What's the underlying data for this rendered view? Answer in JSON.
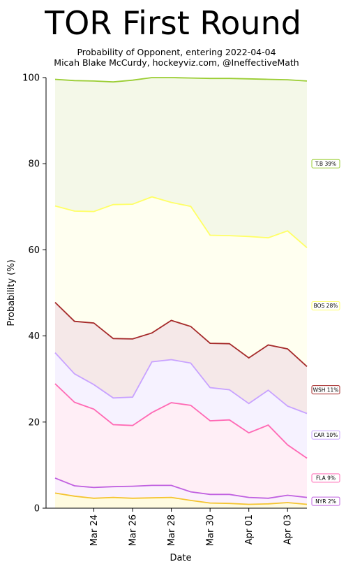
{
  "chart_data": {
    "type": "area",
    "title": "TOR First Round",
    "subtitle_lines": [
      "Probability of Opponent, entering 2022-04-04",
      "Micah Blake McCurdy, hockeyviz.com, @IneffectiveMath"
    ],
    "xlabel": "Date",
    "ylabel": "Probability (%)",
    "ylim": [
      0,
      100
    ],
    "yticks": [
      0,
      20,
      40,
      60,
      80,
      100
    ],
    "x": [
      "2022-03-22",
      "2022-03-23",
      "2022-03-24",
      "2022-03-25",
      "2022-03-26",
      "2022-03-27",
      "2022-03-28",
      "2022-03-29",
      "2022-03-30",
      "2022-03-31",
      "2022-04-01",
      "2022-04-02",
      "2022-04-03",
      "2022-04-04"
    ],
    "xtick_labels": [
      {
        "date": "2022-03-24",
        "label": "Mar 24"
      },
      {
        "date": "2022-03-26",
        "label": "Mar 26"
      },
      {
        "date": "2022-03-28",
        "label": "Mar 28"
      },
      {
        "date": "2022-03-30",
        "label": "Mar 30"
      },
      {
        "date": "2022-04-01",
        "label": "Apr 01"
      },
      {
        "date": "2022-04-03",
        "label": "Apr 03"
      }
    ],
    "stacked_cumulative": true,
    "series": [
      {
        "name": "NYR",
        "legend": "NYR  2%",
        "line_color": "#f4c430",
        "fill_color": "#fffbe0",
        "values": [
          3.5,
          2.8,
          2.3,
          2.5,
          2.3,
          2.4,
          2.5,
          1.8,
          1.2,
          1.1,
          0.9,
          1.0,
          1.3,
          0.9
        ]
      },
      {
        "name": "FLA",
        "legend": "FLA  9%",
        "line_color": "#c060e0",
        "fill_color": "#fbf0fc",
        "values": [
          7.0,
          5.2,
          4.8,
          5.0,
          5.1,
          5.3,
          5.3,
          3.8,
          3.2,
          3.2,
          2.5,
          2.3,
          3.0,
          2.5
        ]
      },
      {
        "name": "CAR",
        "legend": "CAR 10%",
        "line_color": "#ff69b4",
        "fill_color": "#ffeef6",
        "values": [
          28.9,
          24.6,
          23.0,
          19.4,
          19.2,
          22.2,
          24.5,
          23.9,
          20.3,
          20.5,
          17.5,
          19.3,
          14.7,
          11.6
        ]
      },
      {
        "name": "WSH",
        "legend": "WSH 11%",
        "line_color": "#c8a2ff",
        "fill_color": "#f6f2ff",
        "values": [
          36.1,
          31.2,
          28.7,
          25.6,
          25.8,
          34.0,
          34.5,
          33.7,
          28.0,
          27.5,
          24.3,
          27.4,
          23.7,
          22.0
        ]
      },
      {
        "name": "BOS",
        "legend": "BOS 28%",
        "line_color": "#a52a2a",
        "fill_color": "#f5e8e8",
        "values": [
          47.8,
          43.4,
          43.0,
          39.4,
          39.3,
          40.7,
          43.6,
          42.2,
          38.3,
          38.2,
          34.9,
          37.9,
          37.0,
          32.9
        ]
      },
      {
        "name": "T.B",
        "legend": "T.B 39%",
        "line_color": "#ffff66",
        "fill_color": "#fffff0",
        "values": [
          70.2,
          69.0,
          68.9,
          70.5,
          70.6,
          72.3,
          71.0,
          70.1,
          63.4,
          63.3,
          63.1,
          62.8,
          64.4,
          60.5
        ]
      },
      {
        "name": "top",
        "legend": "",
        "line_color": "#9acd32",
        "fill_color": "#f4f8e8",
        "values": [
          99.6,
          99.3,
          99.2,
          99.0,
          99.4,
          100.0,
          100.0,
          99.9,
          99.8,
          99.8,
          99.7,
          99.6,
          99.5,
          99.2
        ]
      }
    ],
    "legend_items": [
      {
        "label": "T.B 39%",
        "edge_color": "#9acd32",
        "value": 80
      },
      {
        "label": "BOS 28%",
        "edge_color": "#ffff66",
        "value": 47
      },
      {
        "label": "WSH 11%",
        "edge_color": "#a52a2a",
        "value": 27.5
      },
      {
        "label": "CAR 10%",
        "edge_color": "#c8a2ff",
        "value": 17
      },
      {
        "label": "FLA  9%",
        "edge_color": "#ff69b4",
        "value": 7
      },
      {
        "label": "NYR  2%",
        "edge_color": "#c060e0",
        "value": 1.6
      }
    ],
    "legend_placement": "right",
    "grid": false
  }
}
